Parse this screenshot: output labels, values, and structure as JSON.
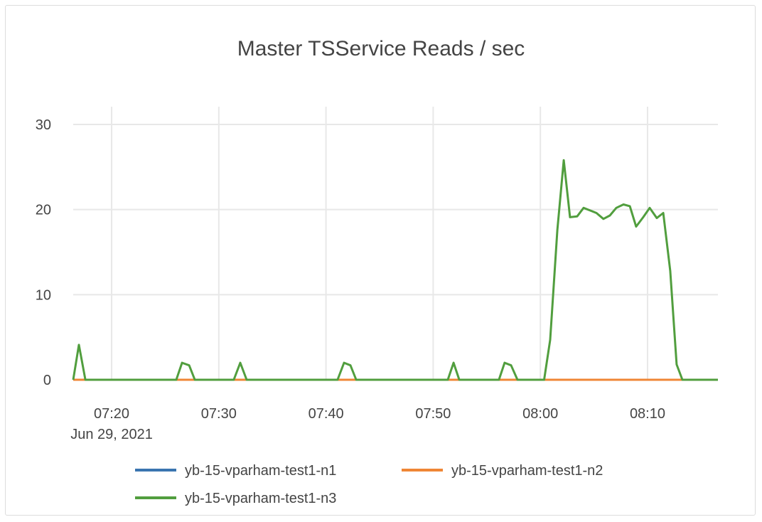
{
  "chart_data": {
    "type": "line",
    "title": "Master TSService Reads / sec",
    "xlabel": "",
    "ylabel": "",
    "xlim": [
      "07:16:25",
      "08:16:34"
    ],
    "ylim": [
      0,
      30
    ],
    "yticks": [
      0,
      10,
      20,
      30
    ],
    "xticks": [
      {
        "time": "07:20:00",
        "label": "07:20",
        "sublabel": "Jun 29, 2021"
      },
      {
        "time": "07:30:00",
        "label": "07:30"
      },
      {
        "time": "07:40:00",
        "label": "07:40"
      },
      {
        "time": "07:50:00",
        "label": "07:50"
      },
      {
        "time": "08:00:00",
        "label": "08:00"
      },
      {
        "time": "08:10:00",
        "label": "08:10"
      }
    ],
    "grid": true,
    "legend_placement": "bottom",
    "series": [
      {
        "name": "yb-15-vparham-test1-n1",
        "color": "#3a75b0",
        "points": [
          [
            "07:16:25",
            0
          ],
          [
            "08:16:34",
            0
          ]
        ]
      },
      {
        "name": "yb-15-vparham-test1-n2",
        "color": "#ef8636",
        "points": [
          [
            "07:16:25",
            0
          ],
          [
            "08:16:34",
            0
          ]
        ]
      },
      {
        "name": "yb-15-vparham-test1-n3",
        "color": "#519e3e",
        "points": [
          [
            "07:16:25",
            0
          ],
          [
            "07:16:57",
            4.1
          ],
          [
            "07:17:33",
            0
          ],
          [
            "07:26:02",
            0
          ],
          [
            "07:26:34",
            2.0
          ],
          [
            "07:27:14",
            1.7
          ],
          [
            "07:27:46",
            0
          ],
          [
            "07:31:24",
            0
          ],
          [
            "07:32:00",
            2.0
          ],
          [
            "07:32:36",
            0
          ],
          [
            "07:41:05",
            0
          ],
          [
            "07:41:41",
            2.0
          ],
          [
            "07:42:17",
            1.7
          ],
          [
            "07:42:49",
            0
          ],
          [
            "07:51:22",
            0
          ],
          [
            "07:51:54",
            2.0
          ],
          [
            "07:52:26",
            0
          ],
          [
            "07:56:08",
            0
          ],
          [
            "07:56:40",
            2.0
          ],
          [
            "07:57:16",
            1.7
          ],
          [
            "07:57:52",
            0
          ],
          [
            "08:00:21",
            0
          ],
          [
            "08:00:55",
            4.7
          ],
          [
            "08:01:35",
            17.6
          ],
          [
            "08:02:11",
            25.8
          ],
          [
            "08:02:46",
            19.1
          ],
          [
            "08:03:26",
            19.2
          ],
          [
            "08:04:02",
            20.2
          ],
          [
            "08:04:38",
            19.9
          ],
          [
            "08:05:14",
            19.6
          ],
          [
            "08:05:53",
            18.9
          ],
          [
            "08:06:29",
            19.3
          ],
          [
            "08:07:05",
            20.2
          ],
          [
            "08:07:45",
            20.6
          ],
          [
            "08:08:21",
            20.4
          ],
          [
            "08:08:56",
            18.0
          ],
          [
            "08:09:36",
            19.1
          ],
          [
            "08:10:12",
            20.2
          ],
          [
            "08:10:52",
            19.0
          ],
          [
            "08:11:28",
            19.6
          ],
          [
            "08:12:07",
            12.8
          ],
          [
            "08:12:43",
            1.8
          ],
          [
            "08:13:15",
            0
          ],
          [
            "08:16:34",
            0
          ]
        ]
      }
    ]
  }
}
